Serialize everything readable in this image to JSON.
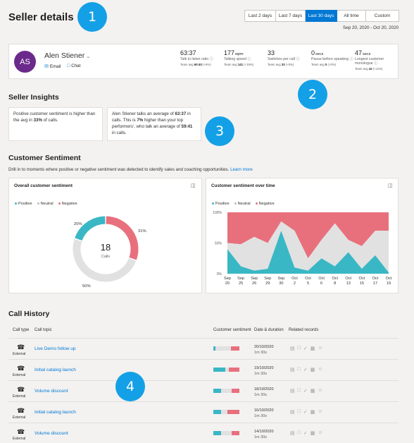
{
  "header": {
    "title": "Seller details",
    "ranges": [
      "Last 2 days",
      "Last 7 days",
      "Last 30 days",
      "All time",
      "Custom"
    ],
    "active_range": "Last 30 days",
    "date_range": "Sep 20, 2020 - Oct 20, 2020"
  },
  "callouts": [
    "1",
    "2",
    "3",
    "4"
  ],
  "seller": {
    "initials": "AS",
    "name": "Alen Stiener",
    "email_label": "Email",
    "chat_label": "Chat",
    "avatar_color": "#6b2a8b"
  },
  "metrics": [
    {
      "value": "63:37",
      "unit": "",
      "label": "Talk to listen ratio",
      "team_prefix": "Team avg",
      "team_value": "60:40",
      "team_suffix": "(+6%)"
    },
    {
      "value": "177",
      "unit": "wpm",
      "label": "Talking speed",
      "team_prefix": "Team avg",
      "team_value": "141",
      "team_suffix": "(+19%)"
    },
    {
      "value": "33",
      "unit": "",
      "label": "Switches per call",
      "team_prefix": "Team avg",
      "team_value": "33",
      "team_suffix": "(+0%)"
    },
    {
      "value": "0",
      "unit": "secs",
      "label": "Pause before speaking",
      "team_prefix": "Team avg",
      "team_value": "0",
      "team_suffix": "(+0%)"
    },
    {
      "value": "47",
      "unit": "secs",
      "label": "Longest customer monologue",
      "team_prefix": "Team avg",
      "team_value": "42",
      "team_suffix": "(+11%)"
    }
  ],
  "insights": {
    "title": "Seller Insights",
    "card1": {
      "a": "Positive customer sentiment is higher than the avg in ",
      "b": "33%",
      "c": " of calls."
    },
    "card2": {
      "a": "Alen Stiener talks an average of ",
      "b": "63:37",
      "c": " in calls. This is ",
      "d": "7%",
      "e": " higher than your top performers', who talk an average of ",
      "f": "59:41",
      "g": " in calls."
    }
  },
  "sentiment": {
    "title": "Customer Sentiment",
    "subtitle": "Drill in to moments where positive or negative sentiment was detected to identify sales and coaching opportunities.",
    "learn_more": "Learn more",
    "overall_title": "Overall customer sentiment",
    "overtime_title": "Customer sentiment over time",
    "legend": [
      "Positive",
      "Neutral",
      "Negative"
    ],
    "colors": {
      "positive": "#3ab7c4",
      "neutral": "#e1e1e1",
      "negative": "#e8707d"
    },
    "donut_center_value": "18",
    "donut_center_label": "Calls"
  },
  "chart_data": [
    {
      "type": "pie",
      "title": "Overall customer sentiment",
      "categories": [
        "Positive",
        "Neutral",
        "Negative"
      ],
      "values": [
        20,
        50,
        31
      ],
      "labels": [
        "20%",
        "50%",
        "31%"
      ]
    },
    {
      "type": "area",
      "title": "Customer sentiment over time",
      "x": [
        "Sep 20",
        "Sep 25",
        "Sep 26",
        "Sep 29",
        "Sep 30",
        "Oct 2",
        "Oct 5",
        "Oct 6",
        "Oct 8",
        "Oct 13",
        "Oct 15",
        "Oct 17",
        "Oct 19"
      ],
      "ylim": [
        0,
        100
      ],
      "yticks": [
        "100%",
        "50%",
        "0%"
      ],
      "series": [
        {
          "name": "Positive",
          "values": [
            40,
            12,
            5,
            8,
            70,
            10,
            5,
            25,
            12,
            35,
            8,
            30,
            2
          ]
        },
        {
          "name": "Neutral",
          "values": [
            10,
            36,
            55,
            42,
            15,
            60,
            20,
            30,
            70,
            20,
            37,
            40,
            68
          ]
        },
        {
          "name": "Negative",
          "values": [
            50,
            52,
            40,
            50,
            15,
            30,
            75,
            45,
            18,
            45,
            55,
            30,
            30
          ]
        }
      ]
    }
  ],
  "call_history": {
    "title": "Call History",
    "headers": {
      "type": "Call type",
      "topic": "Call topic",
      "sentiment": "Customer sentiment",
      "date": "Date & duration",
      "records": "Related records"
    },
    "rows": [
      {
        "type": "External",
        "topic": "Live Demo follow up",
        "date": "20/10/2020",
        "duration": "1m 30s",
        "sentiment": [
          0.08,
          0.6,
          0.32
        ]
      },
      {
        "type": "External",
        "topic": "Initial catalog launch",
        "date": "19/10/2020",
        "duration": "1m 30s",
        "sentiment": [
          0.45,
          0.15,
          0.4
        ]
      },
      {
        "type": "External",
        "topic": "Volume discount",
        "date": "18/10/2020",
        "duration": "1m 30s",
        "sentiment": [
          0.3,
          0.4,
          0.3
        ]
      },
      {
        "type": "External",
        "topic": "Initial catalog launch",
        "date": "16/10/2020",
        "duration": "1m 30s",
        "sentiment": [
          0.3,
          0.25,
          0.45
        ]
      },
      {
        "type": "External",
        "topic": "Volume discount",
        "date": "14/10/2020",
        "duration": "1m 30s",
        "sentiment": [
          0.3,
          0.4,
          0.3
        ]
      }
    ]
  }
}
